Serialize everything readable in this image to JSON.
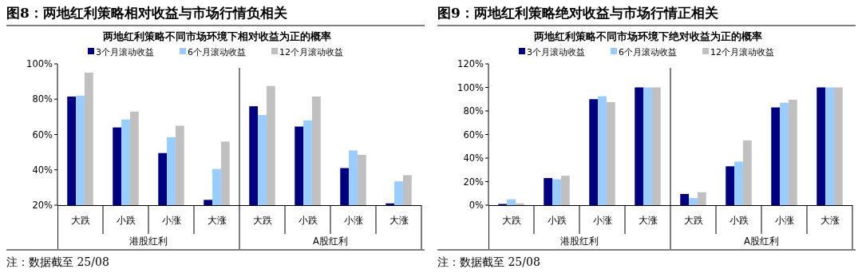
{
  "chart_data": [
    {
      "type": "bar",
      "title": "图8：两地红利策略相对收益与市场行情负相关",
      "subtitle": "两地红利策略不同市场环境下相对收益为正的概率",
      "categories": [
        "大跌",
        "小跌",
        "小涨",
        "大涨",
        "大跌",
        "小跌",
        "小涨",
        "大涨"
      ],
      "series": [
        {
          "name": "3个月滚动收益",
          "color": "#000080",
          "values": [
            81.5,
            64,
            49.5,
            23,
            76,
            64.5,
            41,
            21
          ]
        },
        {
          "name": "6个月滚动收益",
          "color": "#99ccff",
          "values": [
            82,
            68.5,
            58.5,
            40.5,
            71,
            68,
            51,
            33.5
          ]
        },
        {
          "name": "12个月滚动收益",
          "color": "#c0c0c0",
          "values": [
            95,
            73,
            65,
            56,
            87.5,
            81.5,
            48.5,
            37
          ]
        }
      ],
      "ylim": [
        20,
        100
      ],
      "yticks": [
        {
          "value": 20,
          "label": "20%"
        },
        {
          "value": 40,
          "label": "40%"
        },
        {
          "value": 60,
          "label": "60%"
        },
        {
          "value": 80,
          "label": "80%"
        },
        {
          "value": 100,
          "label": "100%"
        }
      ],
      "legend": "top",
      "annotations": [
        "港股红利",
        "A股红利",
        "注：数据截至 25/08"
      ]
    },
    {
      "type": "bar",
      "title": "图9：两地红利策略绝对收益与市场行情正相关",
      "subtitle": "两地红利策略不同市场环境下绝对收益为正的概率",
      "categories": [
        "大跌",
        "小跌",
        "小涨",
        "大涨",
        "大跌",
        "小跌",
        "小涨",
        "大涨"
      ],
      "series": [
        {
          "name": "3个月滚动收益",
          "color": "#000080",
          "values": [
            1,
            23,
            90,
            100,
            9.5,
            33,
            83,
            100
          ]
        },
        {
          "name": "6个月滚动收益",
          "color": "#99ccff",
          "values": [
            5,
            22,
            92.5,
            100,
            6,
            37,
            87,
            100
          ]
        },
        {
          "name": "12个月滚动收益",
          "color": "#c0c0c0",
          "values": [
            1.5,
            25,
            87.5,
            100,
            11,
            55,
            89.5,
            100
          ]
        }
      ],
      "ylim": [
        0,
        120
      ],
      "yticks": [
        {
          "value": 0,
          "label": "0%"
        },
        {
          "value": 20,
          "label": "20%"
        },
        {
          "value": 40,
          "label": "40%"
        },
        {
          "value": 60,
          "label": "60%"
        },
        {
          "value": 80,
          "label": "80%"
        },
        {
          "value": 100,
          "label": "100%"
        },
        {
          "value": 120,
          "label": "120%"
        }
      ],
      "legend": "top",
      "annotations": [
        "港股红利",
        "A股红利",
        "注：数据截至 25/08"
      ]
    }
  ]
}
